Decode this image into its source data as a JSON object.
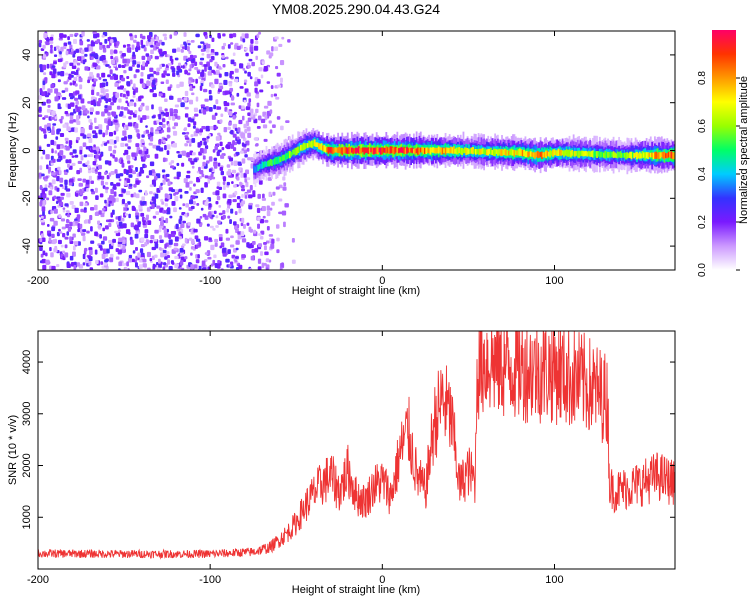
{
  "title": "YM08.2025.290.04.43.G24",
  "chart_data": [
    {
      "type": "heatmap",
      "xlabel": "Height of straight line (km)",
      "ylabel": "Frequency (Hz)",
      "xlim": [
        -200,
        170
      ],
      "ylim": [
        -50,
        50
      ],
      "xticks": [
        -200,
        -100,
        0,
        100
      ],
      "yticks": [
        -40,
        -20,
        0,
        20,
        40
      ],
      "colorbar": {
        "label": "Normalized spectral amplitude",
        "range": [
          0,
          1
        ],
        "ticks": [
          "0.0",
          "0.2",
          "0.4",
          "0.6",
          "0.8"
        ],
        "colors": [
          "#ffffff",
          "#cc99ff",
          "#7a1aff",
          "#3333ff",
          "#00ccff",
          "#00ff66",
          "#99ff00",
          "#ffff00",
          "#ff9900",
          "#ff3300",
          "#ff0066"
        ]
      },
      "noise_region_x": [
        -200,
        -60
      ],
      "ridge": {
        "x": [
          -75,
          -70,
          -65,
          -60,
          -55,
          -50,
          -45,
          -40,
          -35,
          -30,
          -20,
          -10,
          0,
          20,
          40,
          60,
          80,
          90,
          100,
          120,
          140,
          160,
          170
        ],
        "freq": [
          -8,
          -6,
          -5,
          -4,
          -2,
          0,
          2,
          3,
          1,
          0,
          0,
          0,
          0,
          0,
          0,
          -0.5,
          -1,
          -2,
          -1,
          -1.5,
          -2,
          -2,
          -2
        ],
        "amplitude": [
          0.35,
          0.45,
          0.5,
          0.5,
          0.55,
          0.6,
          0.62,
          0.65,
          0.75,
          0.85,
          0.9,
          0.9,
          0.9,
          0.85,
          0.7,
          0.65,
          0.75,
          0.8,
          0.7,
          0.6,
          0.55,
          0.8,
          0.85
        ]
      }
    },
    {
      "type": "line",
      "xlabel": "Height of straight line (km)",
      "ylabel": "SNR (10 * v/v)",
      "xlim": [
        -200,
        170
      ],
      "ylim": [
        0,
        4600
      ],
      "xticks": [
        -200,
        -100,
        0,
        100
      ],
      "yticks": [
        1000,
        2000,
        3000,
        4000
      ],
      "series": [
        {
          "color": "#ee3333",
          "x": [
            -200,
            -150,
            -100,
            -75,
            -65,
            -55,
            -50,
            -45,
            -40,
            -35,
            -30,
            -25,
            -20,
            -15,
            -10,
            -5,
            0,
            5,
            10,
            15,
            20,
            25,
            30,
            35,
            40,
            45,
            50,
            54,
            55,
            60,
            70,
            80,
            90,
            100,
            110,
            120,
            130,
            131,
            132,
            135,
            140,
            150,
            160,
            170
          ],
          "y": [
            300,
            290,
            290,
            330,
            420,
            700,
            900,
            1200,
            1450,
            1650,
            1800,
            1500,
            1900,
            1400,
            1300,
            1600,
            1700,
            1400,
            2200,
            2700,
            1800,
            1500,
            2800,
            3300,
            2900,
            1600,
            1900,
            1700,
            3900,
            4050,
            3950,
            3900,
            3850,
            3850,
            3700,
            3550,
            3300,
            3200,
            1600,
            1500,
            1550,
            1650,
            1800,
            1650
          ]
        }
      ]
    }
  ]
}
